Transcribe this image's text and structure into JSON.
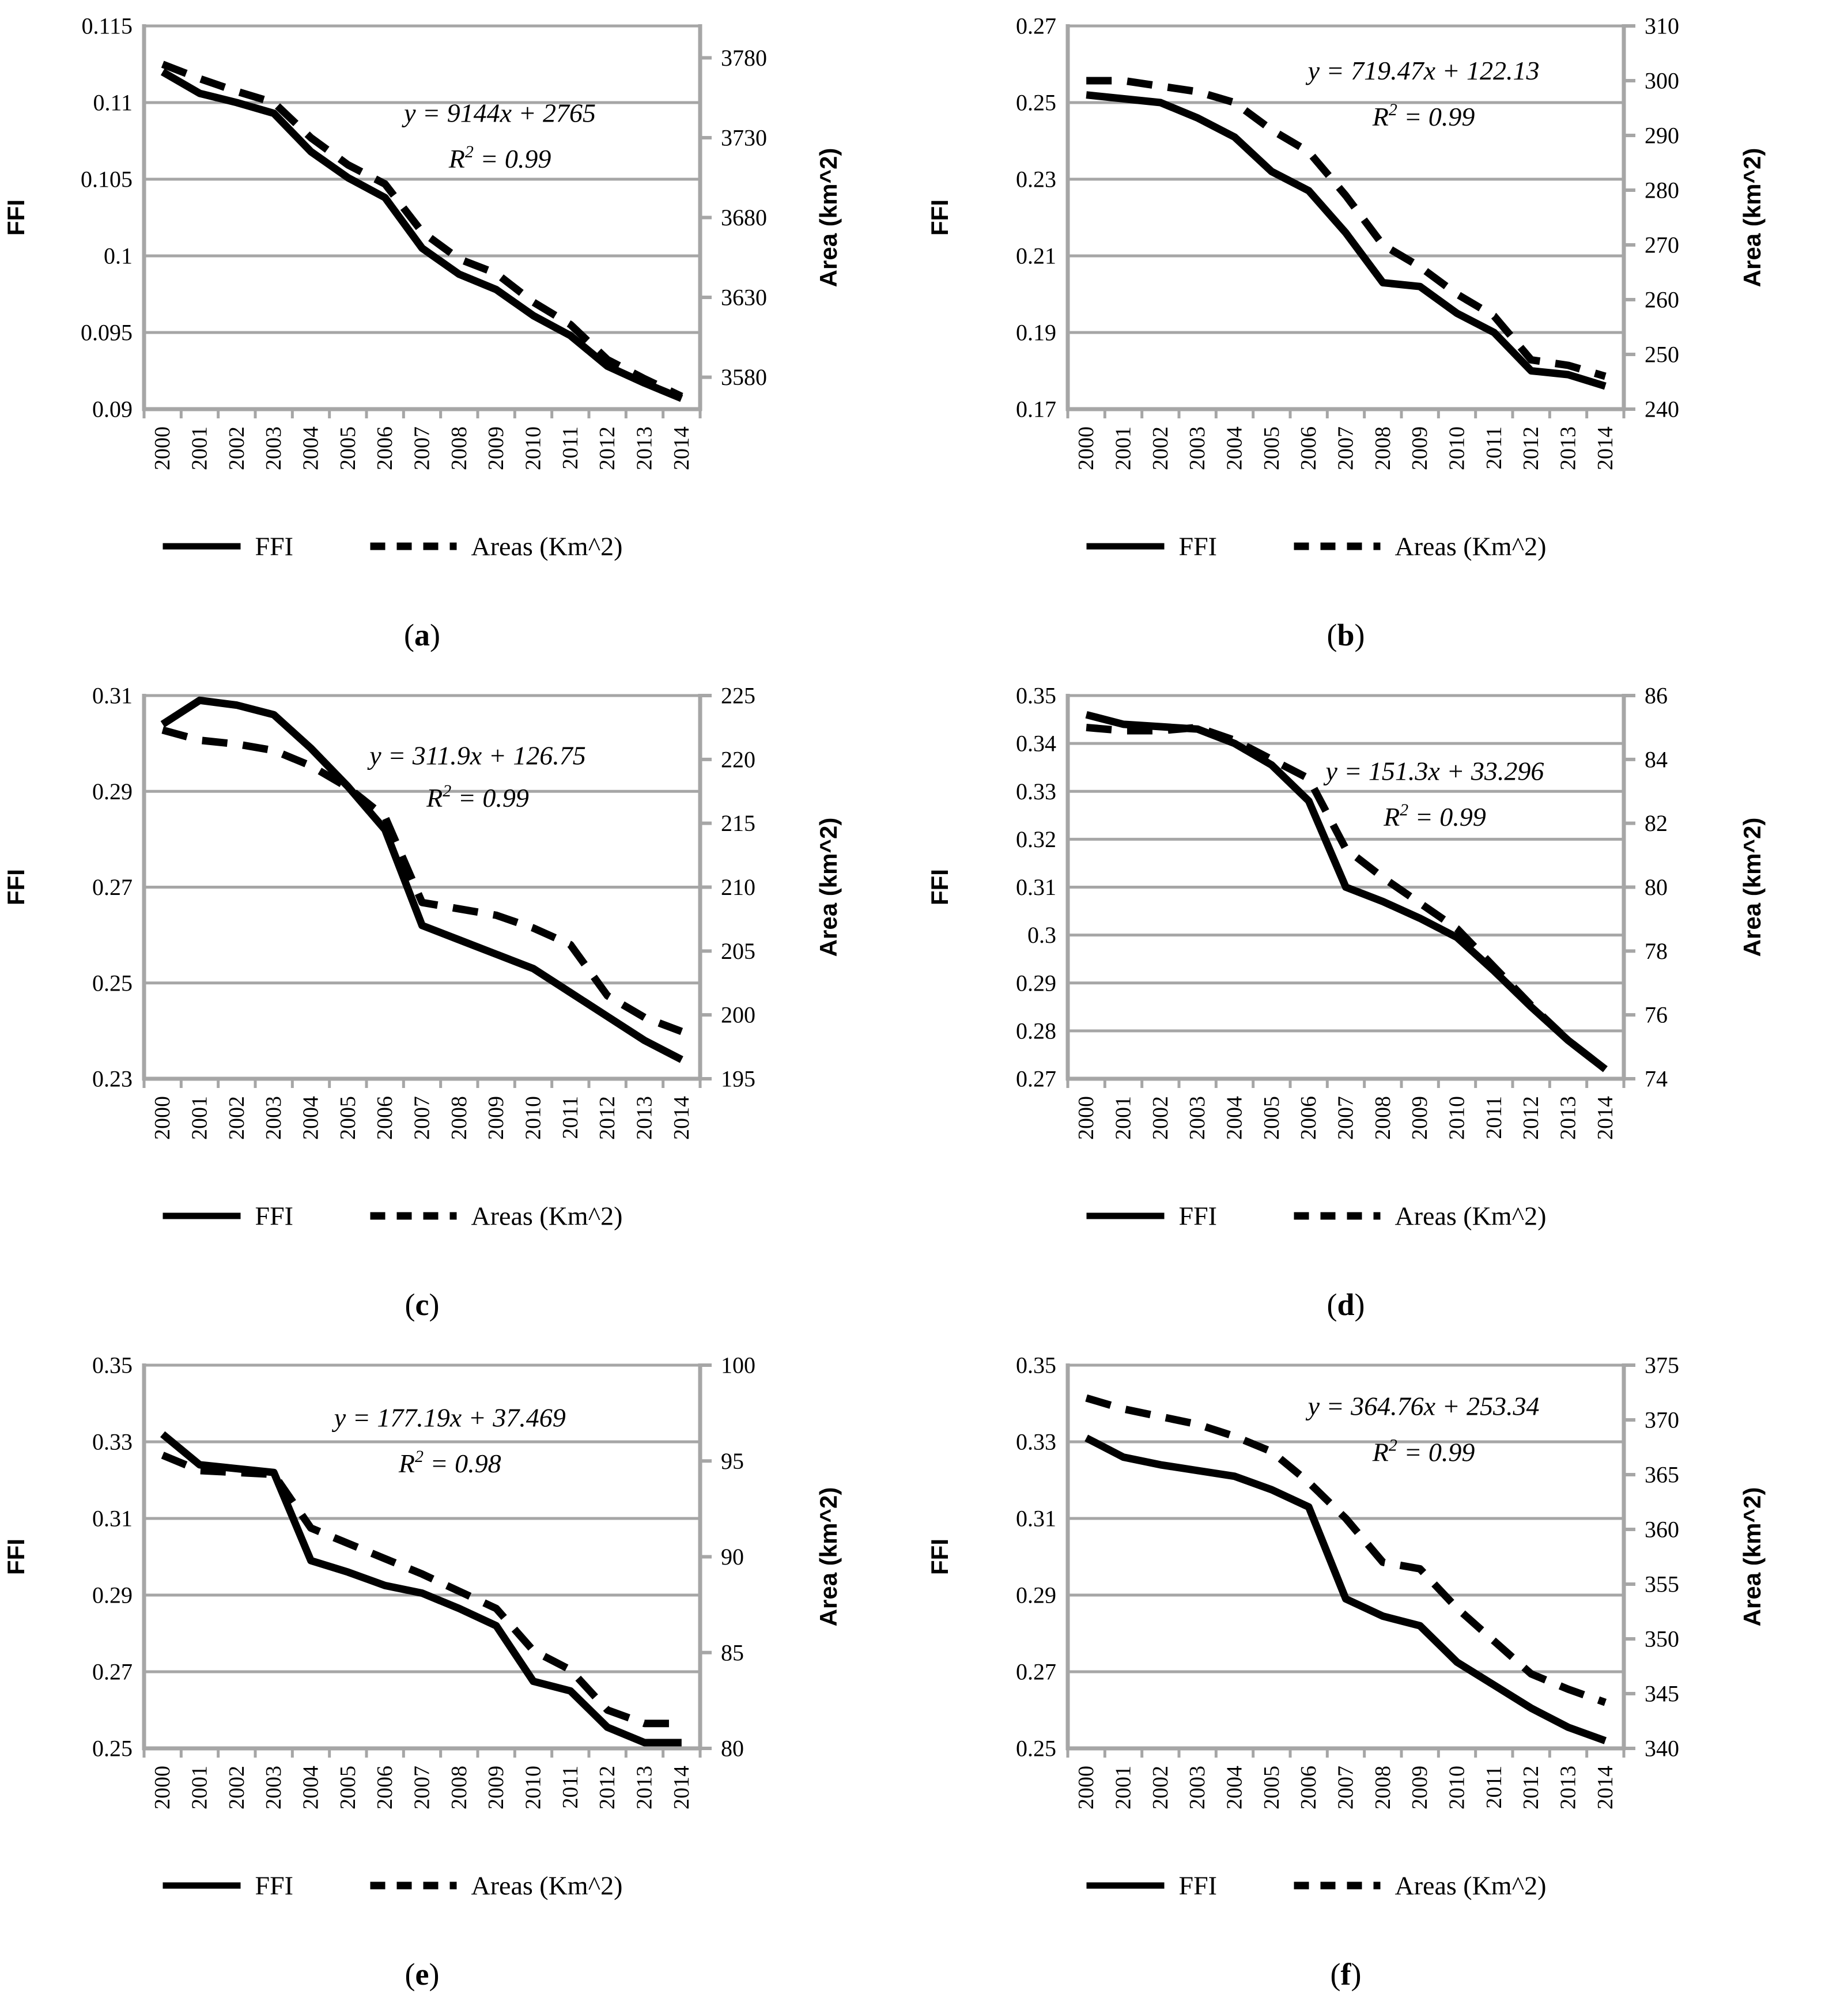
{
  "page": {
    "background": "#ffffff"
  },
  "colors": {
    "axis": "#a6a6a6",
    "grid": "#a6a6a6",
    "series": "#000000",
    "text": "#000000"
  },
  "legend": {
    "ffi_label": "FFI",
    "areas_label": "Areas (Km^2)"
  },
  "years": [
    "2000",
    "2001",
    "2002",
    "2003",
    "2004",
    "2005",
    "2006",
    "2007",
    "2008",
    "2009",
    "2010",
    "2011",
    "2012",
    "2013",
    "2014"
  ],
  "chart_data": [
    {
      "id": "a",
      "type": "line",
      "panel_letter": "a",
      "equation": "y = 9144x + 2765",
      "r2": "0.99",
      "annotation_pos": {
        "cx": 0.64,
        "y1": 0.25,
        "y2": 0.37
      },
      "left_axis": {
        "label": "FFI",
        "min": 0.09,
        "max": 0.115,
        "ticks": [
          "0.115",
          "0.11",
          "0.105",
          "0.1",
          "0.095",
          "0.09"
        ]
      },
      "right_axis": {
        "label": "Area (km^2)",
        "min": 3560,
        "max": 3800,
        "ticks": [
          "3780",
          "3730",
          "3680",
          "3630",
          "3580"
        ]
      },
      "series": [
        {
          "name": "FFI",
          "style": "solid",
          "axis": "left",
          "values": [
            0.112,
            0.1106,
            0.11,
            0.1093,
            0.1068,
            0.1051,
            0.1038,
            0.1005,
            0.0988,
            0.0978,
            0.0961,
            0.0948,
            0.0928,
            0.0917,
            0.0907
          ]
        },
        {
          "name": "Areas (Km^2)",
          "style": "dashed",
          "axis": "right",
          "values": [
            3776,
            3767,
            3759,
            3752,
            3730,
            3713,
            3701,
            3671,
            3654,
            3645,
            3627,
            3613,
            3591,
            3579,
            3568
          ]
        }
      ]
    },
    {
      "id": "b",
      "type": "line",
      "panel_letter": "b",
      "equation": "y = 719.47x + 122.13",
      "r2": "0.99",
      "annotation_pos": {
        "cx": 0.64,
        "y1": 0.14,
        "y2": 0.26
      },
      "left_axis": {
        "label": "FFI",
        "min": 0.17,
        "max": 0.27,
        "ticks": [
          "0.27",
          "0.25",
          "0.23",
          "0.21",
          "0.19",
          "0.17"
        ]
      },
      "right_axis": {
        "label": "Area (km^2)",
        "min": 240,
        "max": 310,
        "ticks": [
          "310",
          "300",
          "290",
          "280",
          "270",
          "260",
          "250",
          "240"
        ]
      },
      "series": [
        {
          "name": "FFI",
          "style": "solid",
          "axis": "left",
          "values": [
            0.252,
            0.251,
            0.25,
            0.246,
            0.241,
            0.232,
            0.227,
            0.216,
            0.203,
            0.202,
            0.195,
            0.19,
            0.18,
            0.179,
            0.176
          ]
        },
        {
          "name": "Areas (Km^2)",
          "style": "dashed",
          "axis": "right",
          "values": [
            300,
            300,
            299,
            298,
            296,
            291,
            287,
            279,
            270,
            266,
            261,
            257,
            249,
            248,
            246
          ]
        }
      ]
    },
    {
      "id": "c",
      "type": "line",
      "panel_letter": "c",
      "equation": "y = 311.9x + 126.75",
      "r2": "0.99",
      "annotation_pos": {
        "cx": 0.6,
        "y1": 0.18,
        "y2": 0.29
      },
      "left_axis": {
        "label": "FFI",
        "min": 0.23,
        "max": 0.31,
        "ticks": [
          "0.31",
          "0.29",
          "0.27",
          "0.25",
          "0.23"
        ]
      },
      "right_axis": {
        "label": "Area (km^2)",
        "min": 195,
        "max": 225,
        "ticks": [
          "225",
          "220",
          "215",
          "210",
          "205",
          "200",
          "195"
        ]
      },
      "series": [
        {
          "name": "FFI",
          "style": "solid",
          "axis": "left",
          "values": [
            0.304,
            0.309,
            0.308,
            0.306,
            0.299,
            0.291,
            0.282,
            0.262,
            0.259,
            0.256,
            0.253,
            0.248,
            0.243,
            0.238,
            0.234
          ]
        },
        {
          "name": "Areas (Km^2)",
          "style": "dashed",
          "axis": "right",
          "values": [
            222.3,
            221.5,
            221.2,
            220.7,
            219.5,
            217.8,
            215.5,
            208.8,
            208.3,
            207.8,
            206.8,
            205.5,
            201.5,
            199.8,
            198.7
          ]
        }
      ]
    },
    {
      "id": "d",
      "type": "line",
      "panel_letter": "d",
      "equation": "y = 151.3x + 33.296",
      "r2": "0.99",
      "annotation_pos": {
        "cx": 0.66,
        "y1": 0.22,
        "y2": 0.34
      },
      "left_axis": {
        "label": "FFI",
        "min": 0.27,
        "max": 0.35,
        "ticks": [
          "0.35",
          "0.34",
          "0.33",
          "0.32",
          "0.31",
          "0.3",
          "0.29",
          "0.28",
          "0.27"
        ]
      },
      "right_axis": {
        "label": "Area (km^2)",
        "min": 74,
        "max": 86,
        "ticks": [
          "86",
          "84",
          "82",
          "80",
          "78",
          "76",
          "74"
        ]
      },
      "series": [
        {
          "name": "FFI",
          "style": "solid",
          "axis": "left",
          "values": [
            0.346,
            0.344,
            0.3435,
            0.343,
            0.34,
            0.3355,
            0.328,
            0.31,
            0.307,
            0.3035,
            0.2995,
            0.2925,
            0.285,
            0.278,
            0.272
          ]
        },
        {
          "name": "Areas (Km^2)",
          "style": "dashed",
          "axis": "right",
          "values": [
            85.0,
            84.9,
            84.9,
            85.0,
            84.6,
            84.0,
            83.4,
            81.2,
            80.3,
            79.5,
            78.7,
            77.5,
            76.3,
            75.2,
            74.3
          ]
        }
      ]
    },
    {
      "id": "e",
      "type": "line",
      "panel_letter": "e",
      "equation": "y = 177.19x + 37.469",
      "r2": "0.98",
      "annotation_pos": {
        "cx": 0.55,
        "y1": 0.16,
        "y2": 0.28
      },
      "left_axis": {
        "label": "FFI",
        "min": 0.25,
        "max": 0.35,
        "ticks": [
          "0.35",
          "0.33",
          "0.31",
          "0.29",
          "0.27",
          "0.25"
        ]
      },
      "right_axis": {
        "label": "Area (km^2)",
        "min": 80,
        "max": 100,
        "ticks": [
          "100",
          "95",
          "90",
          "85",
          "80"
        ]
      },
      "series": [
        {
          "name": "FFI",
          "style": "solid",
          "axis": "left",
          "values": [
            0.332,
            0.324,
            0.323,
            0.322,
            0.299,
            0.296,
            0.2925,
            0.2905,
            0.2865,
            0.282,
            0.2675,
            0.265,
            0.2555,
            0.2515,
            0.2515
          ]
        },
        {
          "name": "Areas (Km^2)",
          "style": "dashed",
          "axis": "right",
          "values": [
            95.3,
            94.5,
            94.4,
            94.3,
            91.5,
            90.7,
            89.9,
            89.1,
            88.2,
            87.3,
            85.1,
            84.1,
            82.0,
            81.3,
            81.3
          ]
        }
      ]
    },
    {
      "id": "f",
      "type": "line",
      "panel_letter": "f",
      "equation": "y = 364.76x + 253.34",
      "r2": "0.99",
      "annotation_pos": {
        "cx": 0.64,
        "y1": 0.13,
        "y2": 0.25
      },
      "left_axis": {
        "label": "FFI",
        "min": 0.25,
        "max": 0.35,
        "ticks": [
          "0.35",
          "0.33",
          "0.31",
          "0.29",
          "0.27",
          "0.25"
        ]
      },
      "right_axis": {
        "label": "Area (km^2)",
        "min": 340,
        "max": 375,
        "ticks": [
          "375",
          "370",
          "365",
          "360",
          "355",
          "350",
          "345",
          "340"
        ]
      },
      "series": [
        {
          "name": "FFI",
          "style": "solid",
          "axis": "left",
          "values": [
            0.331,
            0.326,
            0.324,
            0.3225,
            0.321,
            0.3175,
            0.313,
            0.289,
            0.2845,
            0.282,
            0.2725,
            0.2665,
            0.2605,
            0.2555,
            0.252
          ]
        },
        {
          "name": "Areas (Km^2)",
          "style": "dashed",
          "axis": "right",
          "values": [
            372,
            371,
            370.3,
            369.6,
            368.5,
            367.1,
            364.3,
            361.0,
            357.0,
            356.4,
            352.8,
            349.8,
            346.8,
            345.4,
            344.2
          ]
        }
      ]
    }
  ]
}
